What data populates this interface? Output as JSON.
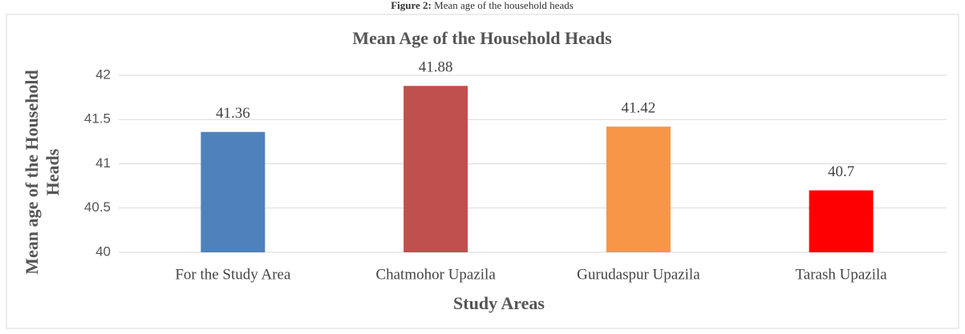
{
  "caption_label": "Figure 2:",
  "caption": "Mean age of the household heads",
  "chart_data": {
    "type": "bar",
    "title": "Mean Age of the Household Heads",
    "categories": [
      "For the Study Area",
      "Chatmohor Upazila",
      "Gurudaspur Upazila",
      "Tarash Upazila"
    ],
    "values": [
      41.36,
      41.88,
      41.42,
      40.7
    ],
    "colors": [
      "#4f81bd",
      "#c0504d",
      "#f79646",
      "#ff0000"
    ],
    "ylim": [
      40,
      42
    ],
    "yticks": [
      40,
      40.5,
      41,
      41.5,
      42
    ],
    "grid": true,
    "x_label": "Study Areas",
    "y_label": [
      "Mean age of the Household",
      "Heads"
    ]
  }
}
